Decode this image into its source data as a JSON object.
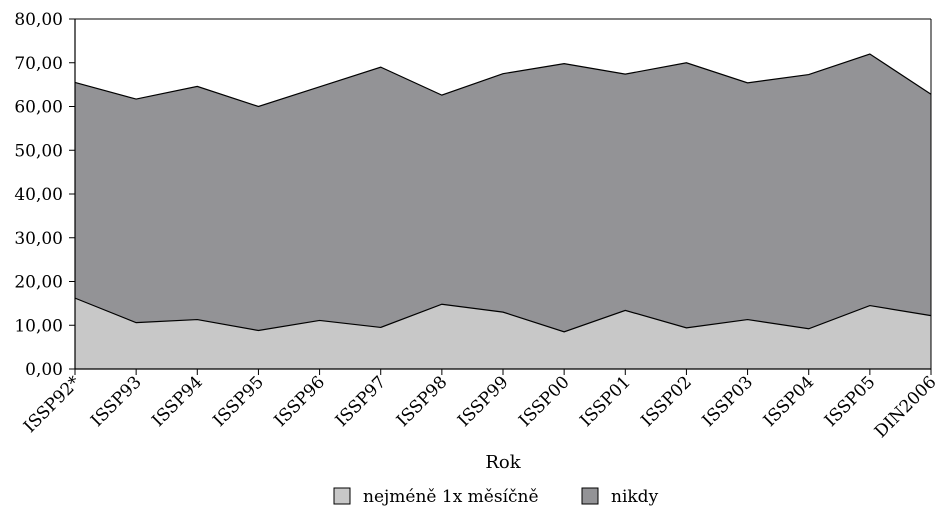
{
  "chart_data": {
    "type": "area",
    "stacked": false,
    "categories": [
      "ISSP92*",
      "ISSP93",
      "ISSP94",
      "ISSP95",
      "ISSP96",
      "ISSP97",
      "ISSP98",
      "ISSP99",
      "ISSP00",
      "ISSP01",
      "ISSP02",
      "ISSP03",
      "ISSP04",
      "ISSP05",
      "DIN2006"
    ],
    "series": [
      {
        "name": "nejméně 1x měsíčně",
        "color": "#c8c8c8",
        "values": [
          16.2,
          10.6,
          11.3,
          8.8,
          11.1,
          9.5,
          14.8,
          13.0,
          8.5,
          13.4,
          9.4,
          11.3,
          9.2,
          14.5,
          12.2
        ]
      },
      {
        "name": "nikdy",
        "color": "#939396",
        "values": [
          65.5,
          61.7,
          64.6,
          60.0,
          64.5,
          69.0,
          62.6,
          67.5,
          69.8,
          67.4,
          70.0,
          65.4,
          67.3,
          72.0,
          62.8
        ]
      }
    ],
    "xlabel": "Rok",
    "ylabel": "",
    "ylim": [
      0,
      80
    ],
    "yticks": [
      "0,00",
      "10,00",
      "20,00",
      "30,00",
      "40,00",
      "50,00",
      "60,00",
      "70,00",
      "80,00"
    ],
    "grid": false,
    "legend_position": "bottom"
  }
}
